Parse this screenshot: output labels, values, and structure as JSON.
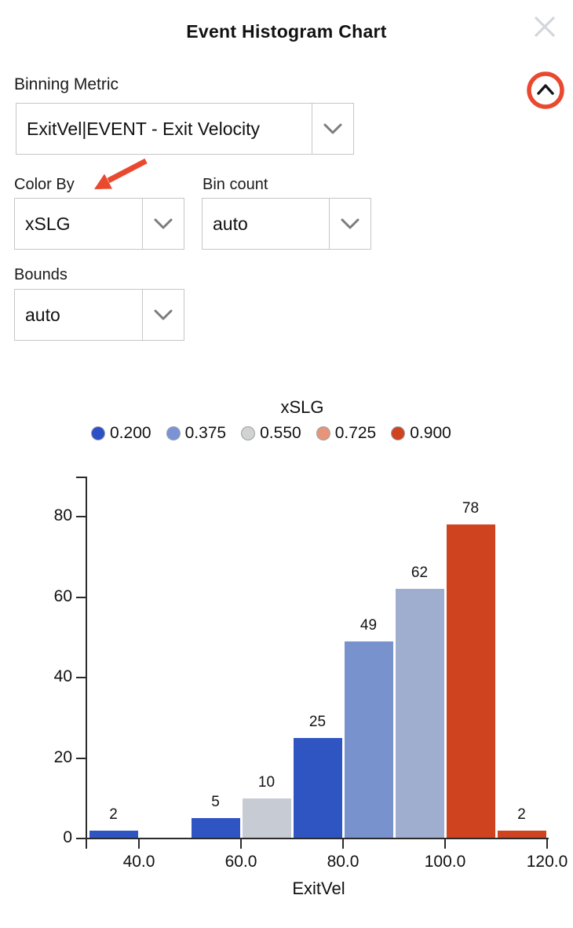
{
  "header": {
    "title": "Event Histogram Chart"
  },
  "controls": {
    "binning_metric": {
      "label": "Binning Metric",
      "value": "ExitVel|EVENT - Exit Velocity"
    },
    "color_by": {
      "label": "Color By",
      "value": "xSLG"
    },
    "bin_count": {
      "label": "Bin count",
      "value": "auto"
    },
    "bounds": {
      "label": "Bounds",
      "value": "auto"
    }
  },
  "icons": {
    "close": "close-icon",
    "collapse": "chevron-up-icon",
    "dropdown_caret": "chevron-down-icon",
    "legend_swatch": "circle"
  },
  "colors": {
    "annotation_red": "#e8492f",
    "axis": "#2b2b2b",
    "close_icon_gray": "#d3d7dc",
    "dropdown_border": "#c6c6c6"
  },
  "chart_data": {
    "type": "bar",
    "title": "xSLG",
    "xlabel": "ExitVel",
    "ylabel": "",
    "grid": false,
    "legend": {
      "title": "xSLG",
      "position": "top",
      "entries": [
        {
          "label": "0.200",
          "color": "#2b50c8"
        },
        {
          "label": "0.375",
          "color": "#7b93d6"
        },
        {
          "label": "0.550",
          "color": "#d2d2d2"
        },
        {
          "label": "0.725",
          "color": "#e6957b"
        },
        {
          "label": "0.900",
          "color": "#d0431f"
        }
      ]
    },
    "bins": [
      {
        "range": [
          30,
          40
        ],
        "count": 2,
        "color": "#2f55c3"
      },
      {
        "range": [
          50,
          60
        ],
        "count": 5,
        "color": "#2f55c3"
      },
      {
        "range": [
          60,
          70
        ],
        "count": 10,
        "color": "#c6cbd4"
      },
      {
        "range": [
          70,
          80
        ],
        "count": 25,
        "color": "#2f55c3"
      },
      {
        "range": [
          80,
          90
        ],
        "count": 49,
        "color": "#7792cd"
      },
      {
        "range": [
          90,
          100
        ],
        "count": 62,
        "color": "#9fadce"
      },
      {
        "range": [
          100,
          110
        ],
        "count": 78,
        "color": "#d0431f"
      },
      {
        "range": [
          110,
          120
        ],
        "count": 2,
        "color": "#d0431f"
      }
    ],
    "xticks": [
      40,
      60,
      80,
      100,
      120
    ],
    "xtick_labels": [
      "40.0",
      "60.0",
      "80.0",
      "100.0",
      "120.0"
    ],
    "yticks": [
      0,
      20,
      40,
      60,
      80
    ],
    "xlim": [
      29.7,
      120
    ],
    "ylim": [
      0,
      90
    ]
  }
}
